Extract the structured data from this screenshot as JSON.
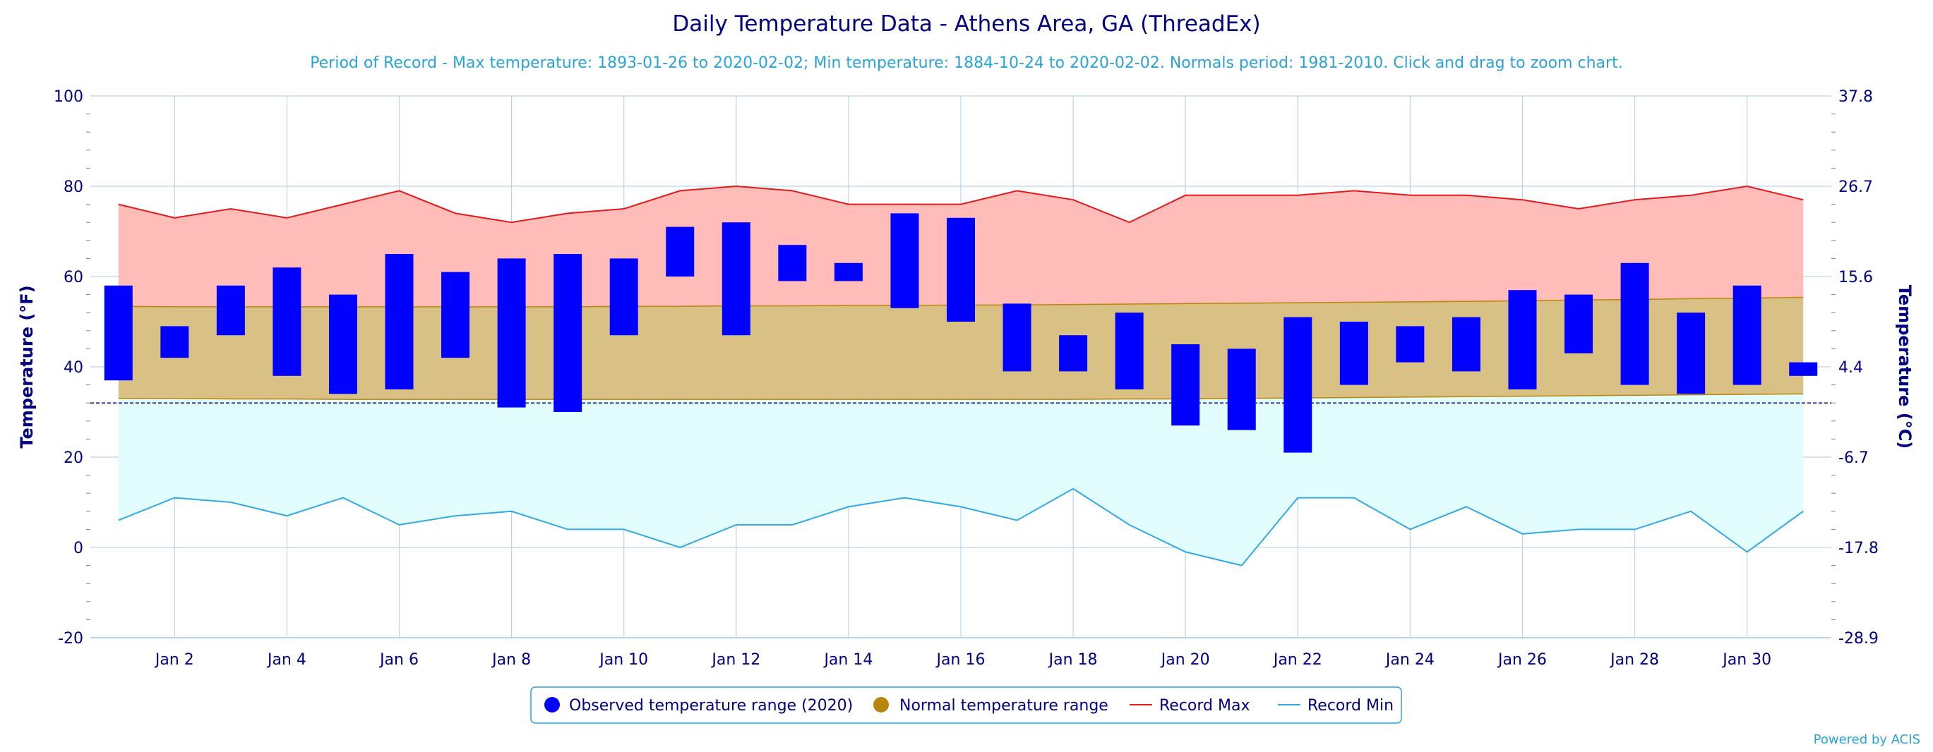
{
  "chart_data": {
    "type": "bar",
    "title": "Daily Temperature Data - Athens Area, GA (ThreadEx)",
    "subtitle": "Period of Record - Max temperature: 1893-01-26 to 2020-02-02; Min temperature: 1884-10-24 to 2020-02-02. Normals period: 1981-2010. Click and drag to zoom chart.",
    "ylabel": "Temperature (°F)",
    "ylabel_right": "Temperature (°C)",
    "ylim": [
      -20,
      100
    ],
    "y_ticks": [
      "100",
      "80",
      "60",
      "40",
      "20",
      "0",
      "-20"
    ],
    "y_ticks_right": [
      "37.8",
      "26.7",
      "15.6",
      "4.4",
      "-6.7",
      "-17.8",
      "-28.9"
    ],
    "x_ticks": [
      "Jan 2",
      "Jan 4",
      "Jan 6",
      "Jan 8",
      "Jan 10",
      "Jan 12",
      "Jan 14",
      "Jan 16",
      "Jan 18",
      "Jan 20",
      "Jan 22",
      "Jan 24",
      "Jan 26",
      "Jan 28",
      "Jan 30"
    ],
    "days": [
      1,
      2,
      3,
      4,
      5,
      6,
      7,
      8,
      9,
      10,
      11,
      12,
      13,
      14,
      15,
      16,
      17,
      18,
      19,
      20,
      21,
      22,
      23,
      24,
      25,
      26,
      27,
      28,
      29,
      30,
      31
    ],
    "freezing_line": 32,
    "grid": true,
    "legend_position": "bottom-center",
    "colors": {
      "observed": "#0000ff",
      "normal": "#b8860b",
      "normal_fill": "#d9c084",
      "record_max": "#e31a1c",
      "record_max_fill": "#ffbcb8",
      "record_min": "#33a9e4",
      "record_min_fill": "#e2fdfd",
      "grid": "#b6d6ee",
      "freezing": "#000080"
    },
    "series": [
      {
        "name": "Observed temperature range (2020)",
        "type": "range",
        "low": [
          37,
          42,
          47,
          38,
          34,
          35,
          42,
          31,
          30,
          47,
          60,
          47,
          59,
          59,
          53,
          50,
          39,
          39,
          35,
          27,
          26,
          21,
          36,
          41,
          39,
          35,
          43,
          36,
          34,
          36,
          38
        ],
        "high": [
          58,
          49,
          58,
          62,
          56,
          65,
          61,
          64,
          65,
          64,
          71,
          72,
          67,
          63,
          74,
          73,
          54,
          47,
          52,
          45,
          44,
          51,
          50,
          49,
          51,
          57,
          56,
          63,
          52,
          58,
          41
        ]
      },
      {
        "name": "Normal temperature range",
        "type": "area-range",
        "low": [
          33,
          33,
          32.9,
          32.9,
          32.8,
          32.8,
          32.8,
          32.8,
          32.8,
          32.8,
          32.8,
          32.8,
          32.8,
          32.8,
          32.8,
          32.8,
          32.8,
          32.8,
          32.9,
          32.9,
          33,
          33.1,
          33.2,
          33.3,
          33.4,
          33.5,
          33.6,
          33.7,
          33.8,
          33.9,
          34
        ],
        "high": [
          53.4,
          53.3,
          53.3,
          53.3,
          53.3,
          53.3,
          53.3,
          53.3,
          53.3,
          53.4,
          53.4,
          53.5,
          53.5,
          53.6,
          53.6,
          53.7,
          53.7,
          53.8,
          53.9,
          54,
          54.1,
          54.2,
          54.3,
          54.4,
          54.5,
          54.6,
          54.8,
          54.9,
          55.1,
          55.2,
          55.4
        ]
      },
      {
        "name": "Record Max",
        "type": "line",
        "values": [
          76,
          73,
          75,
          73,
          76,
          79,
          74,
          72,
          74,
          75,
          79,
          80,
          79,
          76,
          76,
          76,
          79,
          77,
          72,
          78,
          78,
          78,
          79,
          78,
          78,
          77,
          75,
          77,
          78,
          80,
          77
        ]
      },
      {
        "name": "Record Min",
        "type": "line",
        "values": [
          6,
          11,
          10,
          7,
          11,
          5,
          7,
          8,
          4,
          4,
          0,
          5,
          5,
          9,
          11,
          9,
          6,
          13,
          5,
          -1,
          -4,
          11,
          11,
          4,
          9,
          3,
          4,
          4,
          8,
          -1,
          8
        ]
      }
    ],
    "credit": "Powered by ACIS"
  }
}
